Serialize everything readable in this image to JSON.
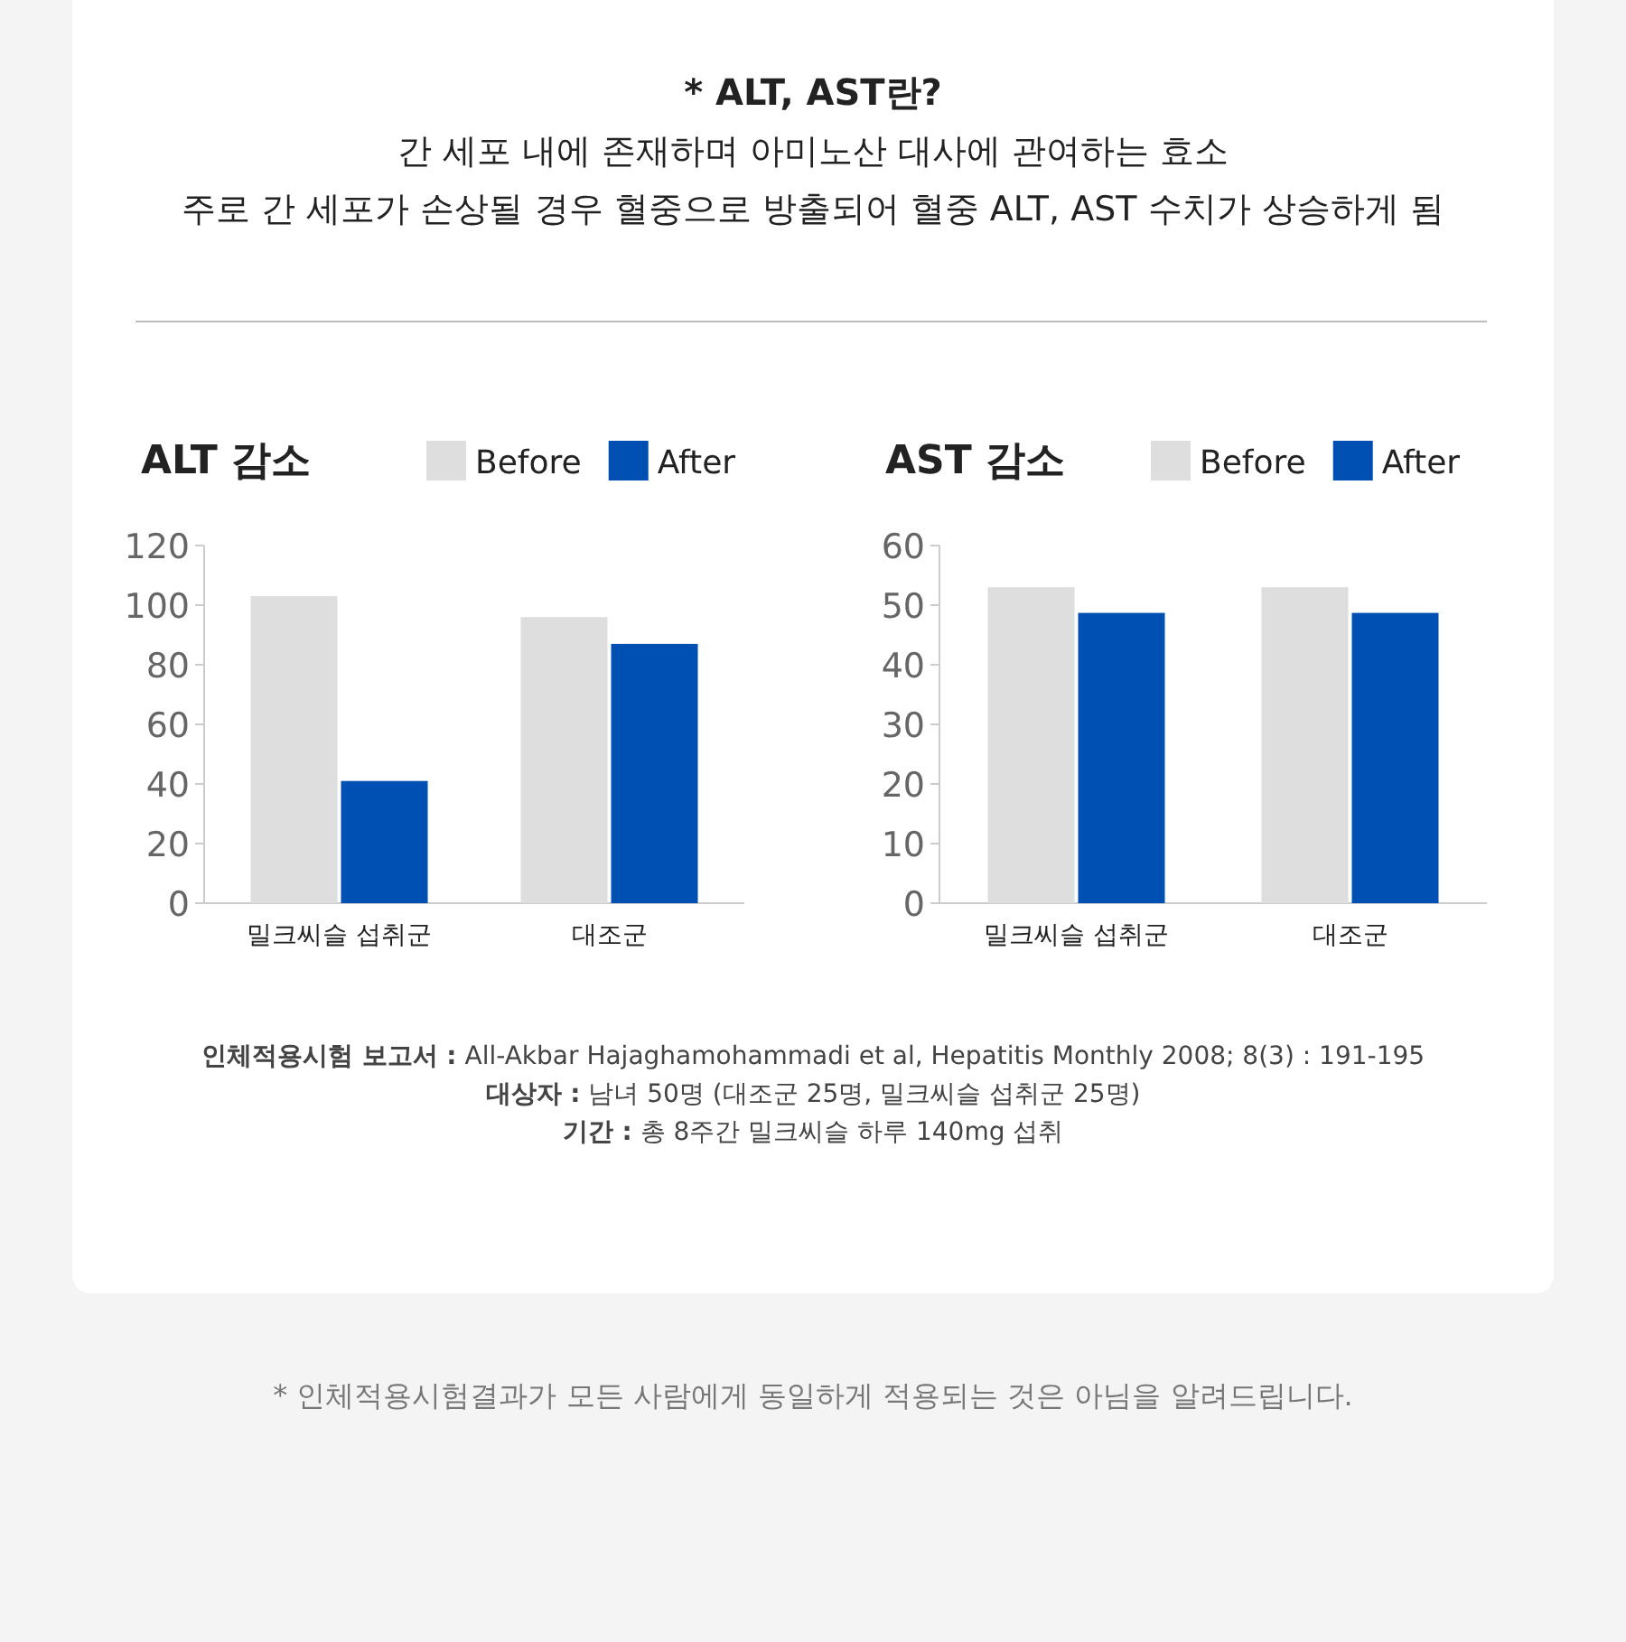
{
  "chart_data": [
    {
      "type": "bar",
      "title": "ALT 감소",
      "categories": [
        "밀크씨슬 섭취군",
        "대조군"
      ],
      "series": [
        {
          "name": "Before",
          "color": "#dedede",
          "values": [
            103,
            96
          ]
        },
        {
          "name": "After",
          "color": "#0050b4",
          "values": [
            41,
            87
          ]
        }
      ],
      "ylim": [
        0,
        120
      ],
      "yticks": [
        0,
        20,
        40,
        60,
        80,
        100,
        120
      ],
      "grid": false,
      "legend": "top right",
      "annotations": [
        "* ALT, AST란?",
        "간 세포 내에 존재하며 아미노산 대사에 관여하는 효소",
        "주로 간 세포가 손상될 경우 혈중으로 방출되어 혈중 ALT, AST 수치가 상승하게 됨"
      ]
    },
    {
      "type": "bar",
      "title": "AST 감소",
      "categories": [
        "밀크씨슬 섭취군",
        "대조군"
      ],
      "series": [
        {
          "name": "Before",
          "color": "#dedede",
          "values": [
            53,
            53
          ]
        },
        {
          "name": "After",
          "color": "#0050b4",
          "values": [
            48.7,
            48.7
          ]
        }
      ],
      "ylim": [
        0,
        60
      ],
      "yticks": [
        0,
        10,
        20,
        30,
        40,
        50,
        60
      ],
      "grid": false,
      "legend": "top right",
      "annotations": [
        "**인체적용시험 보고서 :** All-Akbar Hajaghamohammadi et al, Hepatitis Monthly 2008; 8(3) : 191-195",
        "**대상자 :** 남녀 50명 (대조군 25명, 밀크씨슬 섭취군 25명)",
        "**기간 :** 총 8주간 밀크씨슬 하루 140mg 섭취",
        "* 인체적용시험결과가 모든 사람에게 동일하게 적용되는 것은 아님을 알려드립니다."
      ]
    }
  ]
}
